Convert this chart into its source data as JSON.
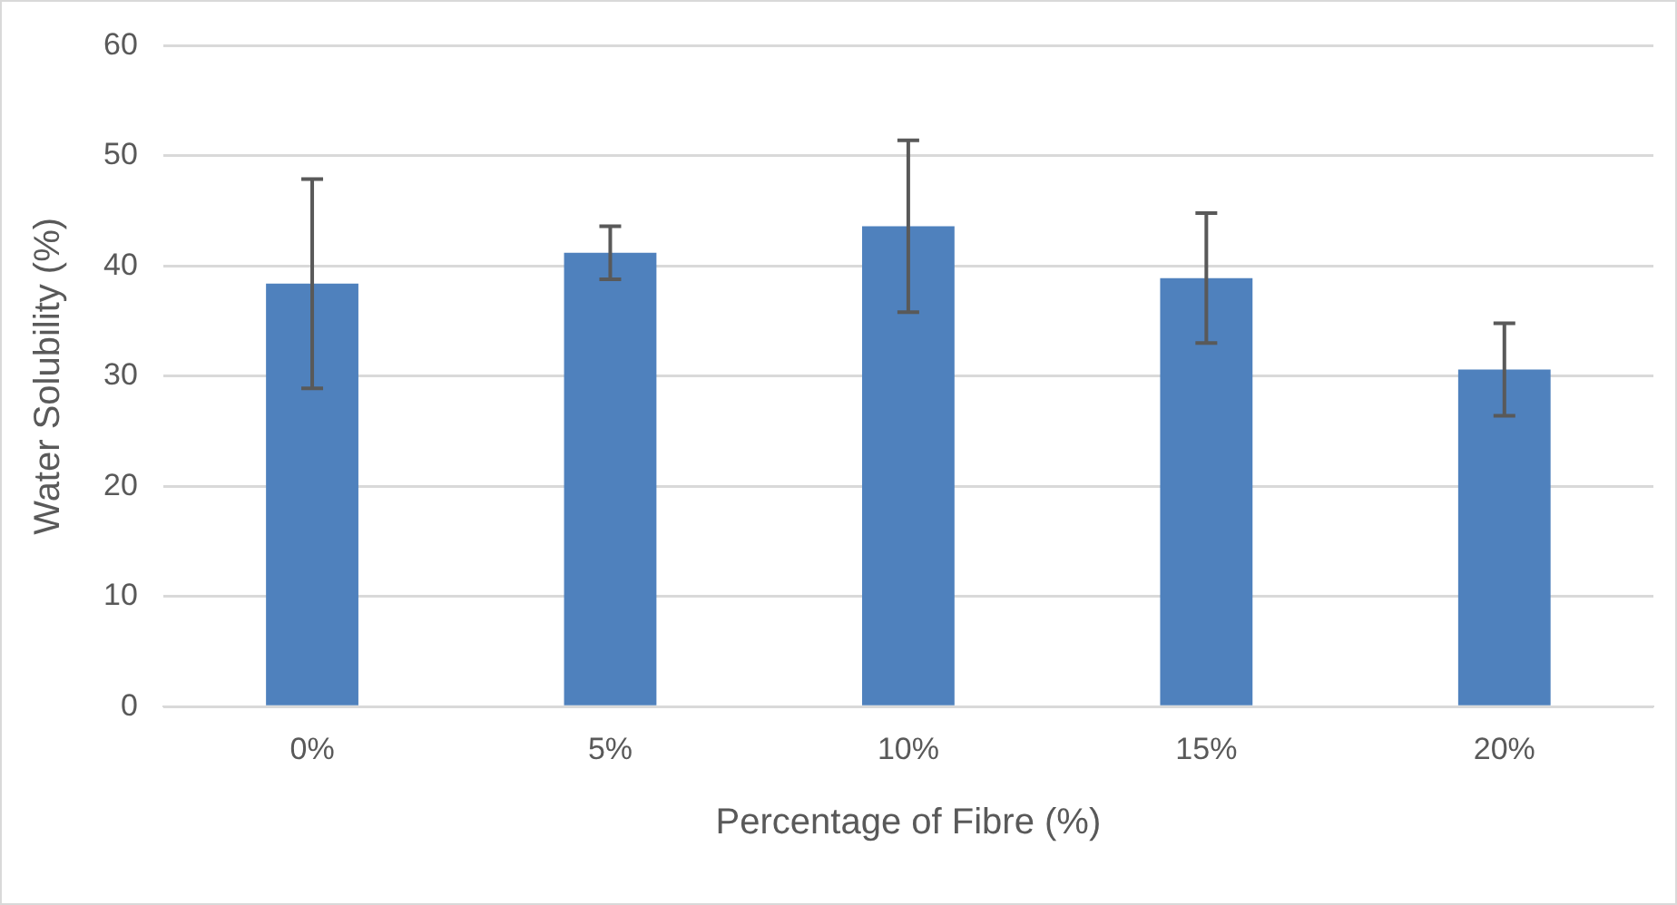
{
  "chart_data": {
    "type": "bar",
    "xlabel": "Percentage of Fibre (%)",
    "ylabel": "Water Solubility (%)",
    "categories": [
      "0%",
      "5%",
      "10%",
      "15%",
      "20%"
    ],
    "values": [
      38.4,
      41.2,
      43.6,
      38.9,
      30.6
    ],
    "errors": [
      9.5,
      2.4,
      7.8,
      5.9,
      4.2
    ],
    "color": "#4f81bd",
    "ylim": [
      0,
      60
    ],
    "yticks": [
      0,
      10,
      20,
      30,
      40,
      50,
      60
    ],
    "grid": "y",
    "legend": false
  }
}
